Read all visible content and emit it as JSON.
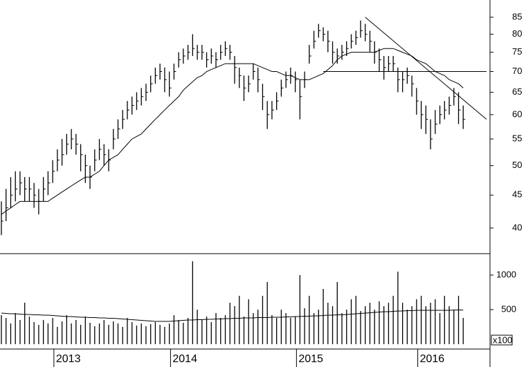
{
  "chart_data": [
    {
      "type": "ohlc",
      "log": true,
      "ylim": [
        36.5,
        90.4
      ],
      "yticks": [
        40,
        45,
        50,
        55,
        60,
        65,
        70,
        75,
        80,
        85
      ],
      "color": "#000000",
      "high": [
        44,
        46,
        48,
        49,
        49,
        48,
        48,
        47,
        46,
        48,
        49,
        51,
        53,
        55,
        56,
        57,
        56,
        54,
        52,
        50,
        53,
        55,
        54,
        53,
        57,
        59,
        61,
        63,
        64,
        65,
        66,
        67,
        69,
        71,
        72,
        71,
        70,
        72,
        75,
        76,
        77,
        80,
        77,
        77,
        75,
        76,
        75,
        77,
        78,
        77,
        74,
        71,
        69,
        69,
        72,
        71,
        67,
        63,
        63,
        65,
        68,
        70,
        71,
        70,
        68,
        70,
        77,
        81,
        83,
        82,
        81,
        78,
        76,
        77,
        78,
        80,
        81,
        84,
        83,
        81,
        78,
        76,
        74,
        74,
        74,
        71,
        70,
        71,
        69,
        66,
        63,
        62,
        59,
        61,
        62,
        63,
        64,
        66,
        65,
        62
      ],
      "low": [
        39,
        41,
        43,
        44,
        45,
        44,
        44,
        43,
        42,
        44,
        45,
        47,
        49,
        50,
        52,
        53,
        52,
        49,
        47,
        46,
        49,
        51,
        50,
        49,
        53,
        55,
        57,
        59,
        60,
        61,
        62,
        63,
        65,
        67,
        68,
        65,
        64,
        68,
        71,
        72,
        73,
        74,
        73,
        73,
        71,
        72,
        71,
        73,
        74,
        73,
        67,
        66,
        63,
        65,
        68,
        65,
        61,
        57,
        59,
        61,
        64,
        66,
        67,
        65,
        59,
        66,
        72,
        76,
        79,
        78,
        75,
        72,
        72,
        73,
        74,
        76,
        77,
        79,
        78,
        75,
        72,
        70,
        68,
        70,
        70,
        65,
        65,
        67,
        64,
        60,
        57,
        56,
        53,
        56,
        58,
        59,
        60,
        62,
        58,
        57
      ],
      "close": [
        41,
        43,
        45,
        46,
        47,
        46,
        46,
        45,
        44,
        46,
        47,
        49,
        51,
        52,
        54,
        55,
        54,
        52,
        50,
        48,
        51,
        53,
        52,
        51,
        55,
        57,
        59,
        61,
        62,
        63,
        64,
        65,
        67,
        69,
        70,
        68,
        66,
        70,
        73,
        74,
        75,
        76,
        75,
        75,
        73,
        74,
        73,
        75,
        76,
        75,
        71,
        69,
        66,
        67,
        70,
        68,
        64,
        60,
        61,
        63,
        66,
        68,
        69,
        68,
        64,
        68,
        74,
        78,
        81,
        80,
        78,
        75,
        74,
        75,
        76,
        78,
        79,
        81,
        80,
        78,
        75,
        73,
        71,
        72,
        72,
        68,
        68,
        69,
        67,
        63,
        60,
        59,
        55,
        58,
        60,
        61,
        62,
        64,
        61,
        59
      ],
      "ma": [
        42,
        42.5,
        43,
        43.5,
        44,
        44,
        44,
        44,
        44,
        44,
        44,
        44.5,
        45,
        45.5,
        46,
        46.5,
        47,
        47.5,
        48,
        48,
        48.5,
        49,
        50,
        51,
        51.5,
        52,
        53,
        54,
        55,
        55.5,
        56,
        57,
        58,
        59,
        60,
        61,
        62,
        63,
        64,
        65.5,
        66.5,
        67.5,
        68.5,
        69,
        70,
        70.5,
        71,
        71.5,
        72,
        72,
        72,
        72,
        72,
        72,
        72,
        71.5,
        71,
        70.5,
        70,
        70,
        69.5,
        69,
        69,
        68.5,
        68,
        68,
        68,
        68.5,
        69,
        69.5,
        70.5,
        71.5,
        73,
        74,
        74.5,
        75,
        75,
        75,
        75,
        75,
        75,
        75.5,
        76,
        76,
        76,
        75.5,
        75,
        74.5,
        74,
        73,
        72.5,
        72,
        71,
        70,
        69.5,
        69,
        68,
        67.5,
        67,
        66
      ],
      "trendlines": [
        {
          "x": [
            78,
            104
          ],
          "y": [
            85,
            59
          ]
        },
        {
          "x": [
            69,
            104
          ],
          "y": [
            70,
            70
          ]
        }
      ]
    },
    {
      "type": "bar",
      "ylim": [
        0,
        1310
      ],
      "yticks": [
        500,
        1000
      ],
      "unit_label": "x100",
      "color": "#000000",
      "categories": [
        null,
        null,
        null,
        null,
        null,
        null,
        null,
        null,
        null,
        null,
        null,
        null,
        "2013",
        null,
        null,
        null,
        null,
        null,
        null,
        null,
        null,
        null,
        null,
        null,
        null,
        null,
        null,
        null,
        null,
        null,
        null,
        null,
        null,
        null,
        null,
        null,
        null,
        "2014",
        null,
        null,
        null,
        null,
        null,
        null,
        null,
        null,
        null,
        null,
        null,
        null,
        null,
        null,
        null,
        null,
        null,
        null,
        null,
        null,
        null,
        null,
        null,
        null,
        null,
        null,
        "2015",
        null,
        null,
        null,
        null,
        null,
        null,
        null,
        null,
        null,
        null,
        null,
        null,
        null,
        null,
        null,
        null,
        null,
        null,
        null,
        null,
        null,
        null,
        null,
        null,
        null,
        "2016",
        null,
        null,
        null,
        null,
        null,
        null,
        null,
        null,
        null
      ],
      "values": [
        420,
        380,
        300,
        450,
        350,
        600,
        400,
        320,
        280,
        350,
        300,
        380,
        250,
        330,
        420,
        300,
        350,
        280,
        400,
        310,
        260,
        300,
        350,
        280,
        330,
        300,
        250,
        380,
        320,
        270,
        300,
        260,
        290,
        320,
        280,
        250,
        300,
        420,
        350,
        310,
        380,
        1200,
        500,
        350,
        400,
        320,
        450,
        380,
        420,
        600,
        550,
        700,
        400,
        650,
        450,
        500,
        700,
        900,
        420,
        380,
        500,
        450,
        380,
        400,
        1000,
        520,
        700,
        450,
        500,
        800,
        600,
        550,
        900,
        450,
        500,
        650,
        700,
        480,
        550,
        600,
        500,
        620,
        550,
        600,
        700,
        1050,
        600,
        500,
        550,
        650,
        700,
        550,
        600,
        650,
        450,
        700,
        550,
        500,
        700,
        380
      ],
      "ma": [
        450,
        445,
        440,
        440,
        435,
        430,
        430,
        425,
        425,
        420,
        420,
        415,
        410,
        405,
        400,
        400,
        395,
        390,
        390,
        385,
        385,
        380,
        380,
        375,
        375,
        370,
        365,
        360,
        355,
        350,
        345,
        340,
        335,
        330,
        330,
        330,
        330,
        335,
        340,
        345,
        350,
        350,
        355,
        355,
        360,
        360,
        365,
        365,
        370,
        370,
        375,
        375,
        380,
        380,
        380,
        385,
        385,
        385,
        390,
        390,
        390,
        395,
        395,
        400,
        400,
        405,
        405,
        410,
        410,
        415,
        420,
        420,
        425,
        425,
        430,
        435,
        440,
        445,
        450,
        455,
        460,
        465,
        470,
        470,
        475,
        480,
        480,
        485,
        485,
        490,
        490,
        490,
        490,
        490,
        490,
        490,
        490,
        495,
        495,
        495
      ]
    }
  ]
}
